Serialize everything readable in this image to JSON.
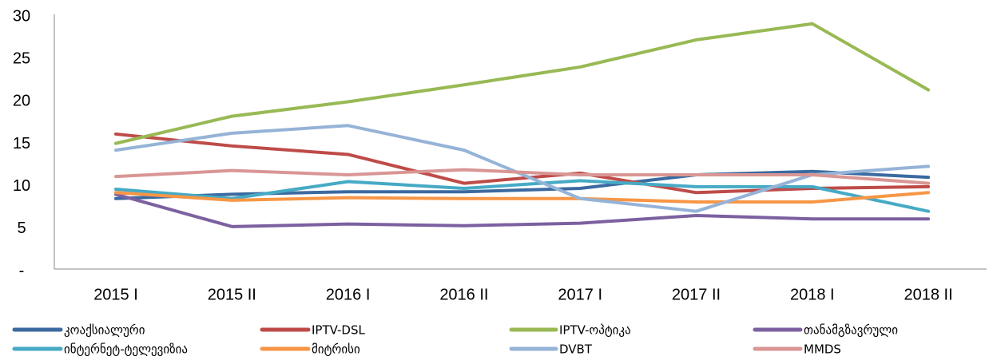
{
  "chart_data": {
    "type": "line",
    "categories": [
      "2015 I",
      "2015 II",
      "2016 I",
      "2016 II",
      "2017 I",
      "2017 II",
      "2018 I",
      "2018 II"
    ],
    "ylim": [
      0,
      30
    ],
    "yticks": [
      {
        "value": 0,
        "label": "-"
      },
      5,
      10,
      15,
      20,
      25,
      30
    ],
    "grid": false,
    "legend": "bottom",
    "series": [
      {
        "name": "კოაქსიალური",
        "color": "#3b6aa0",
        "values": [
          8.3,
          8.8,
          9.1,
          9.1,
          9.5,
          11.1,
          11.5,
          10.8
        ]
      },
      {
        "name": "IPTV-DSL",
        "color": "#be4b48",
        "values": [
          15.9,
          14.5,
          13.5,
          10.1,
          11.3,
          9.0,
          9.5,
          9.7
        ]
      },
      {
        "name": "IPTV-ოპტიკა",
        "color": "#98b954",
        "values": [
          14.8,
          18.0,
          19.7,
          21.7,
          23.8,
          27.0,
          28.9,
          21.1
        ]
      },
      {
        "name": "თანამგზავრული",
        "color": "#7d60a0",
        "values": [
          8.8,
          5.0,
          5.3,
          5.1,
          5.4,
          6.3,
          5.9,
          5.9
        ]
      },
      {
        "name": "ინტერნეტ-ტელევიზია",
        "color": "#46aac5",
        "values": [
          9.4,
          8.3,
          10.3,
          9.5,
          10.4,
          9.7,
          9.7,
          6.8
        ]
      },
      {
        "name": "მიტრისი",
        "color": "#f79646",
        "values": [
          9.0,
          8.1,
          8.4,
          8.3,
          8.3,
          7.9,
          7.9,
          9.0
        ]
      },
      {
        "name": "DVBT",
        "color": "#95b3d7",
        "values": [
          14.0,
          16.0,
          16.9,
          14.0,
          8.3,
          6.8,
          11.1,
          12.1
        ]
      },
      {
        "name": "MMDS",
        "color": "#d99694",
        "values": [
          10.9,
          11.6,
          11.1,
          11.7,
          11.1,
          11.1,
          11.1,
          10.1
        ]
      }
    ]
  }
}
